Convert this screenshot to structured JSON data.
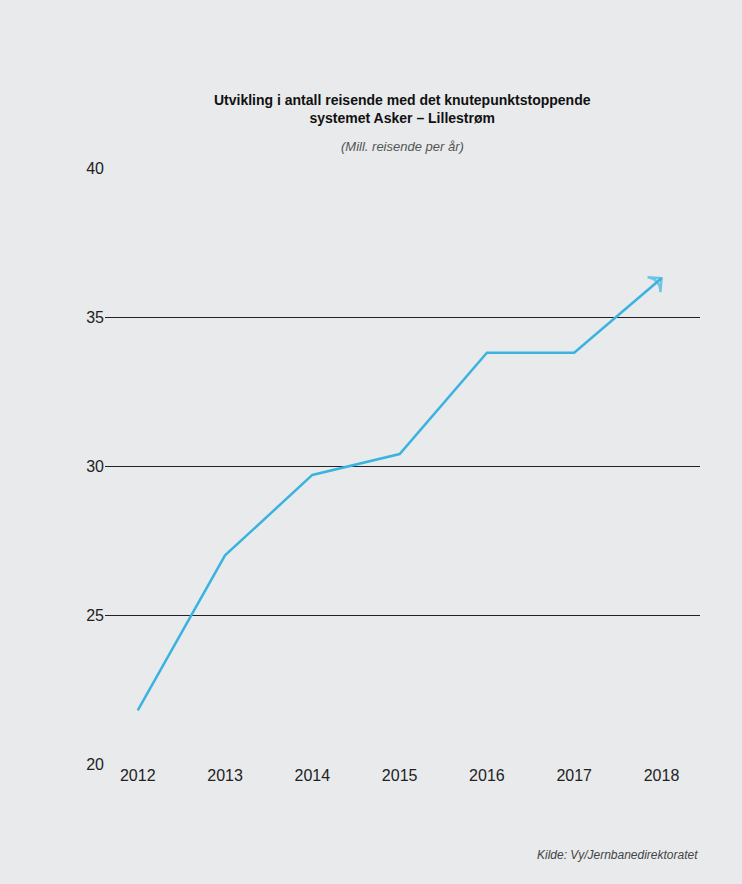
{
  "chart_data": {
    "type": "line",
    "title": "Utvikling i antall reisende med det knutepunktstoppende systemet Asker – Lillestrøm",
    "subtitle": "(Mill. reisende per år)",
    "annotations": [
      "Kilde: Vy/Jernbanedirektoratet"
    ],
    "categories": [
      "2012",
      "2013",
      "2014",
      "2015",
      "2016",
      "2017",
      "2018"
    ],
    "values": [
      21.8,
      27.0,
      29.7,
      30.4,
      33.8,
      33.8,
      36.3
    ],
    "color": "#3bb3e0",
    "marker": "arrow",
    "ylim": [
      20,
      40
    ],
    "yticks": [
      20,
      25,
      30,
      35,
      40
    ],
    "grid": true
  }
}
